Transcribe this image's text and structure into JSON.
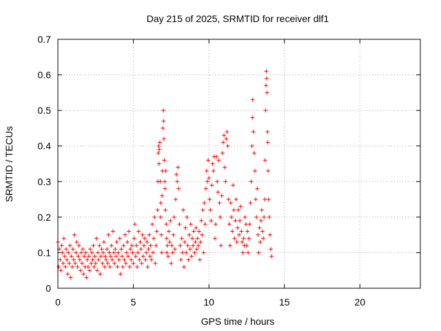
{
  "chart_data": {
    "type": "scatter",
    "title": "Day 215 of 2025, SRMTID for receiver dlf1",
    "xlabel": "GPS time / hours",
    "ylabel": "SRMTID / TECUs",
    "xlim": [
      0,
      24
    ],
    "ylim": [
      0,
      0.7
    ],
    "xticks": [
      0,
      5,
      10,
      15,
      20
    ],
    "yticks": [
      0,
      0.1,
      0.2,
      0.3,
      0.4,
      0.5,
      0.6,
      0.7
    ],
    "grid": true,
    "marker": "plus",
    "color": "#ff0000",
    "series": [
      {
        "name": "SRMTID",
        "points": [
          [
            0.0,
            0.13
          ],
          [
            0.05,
            0.06
          ],
          [
            0.1,
            0.11
          ],
          [
            0.15,
            0.08
          ],
          [
            0.2,
            0.05
          ],
          [
            0.25,
            0.12
          ],
          [
            0.3,
            0.1
          ],
          [
            0.35,
            0.07
          ],
          [
            0.4,
            0.14
          ],
          [
            0.45,
            0.09
          ],
          [
            0.5,
            0.06
          ],
          [
            0.55,
            0.11
          ],
          [
            0.6,
            0.08
          ],
          [
            0.65,
            0.04
          ],
          [
            0.7,
            0.1
          ],
          [
            0.75,
            0.07
          ],
          [
            0.8,
            0.12
          ],
          [
            0.85,
            0.03
          ],
          [
            0.9,
            0.09
          ],
          [
            0.95,
            0.06
          ],
          [
            1.0,
            0.11
          ],
          [
            1.05,
            0.08
          ],
          [
            1.1,
            0.15
          ],
          [
            1.15,
            0.07
          ],
          [
            1.2,
            0.1
          ],
          [
            1.25,
            0.13
          ],
          [
            1.3,
            0.06
          ],
          [
            1.35,
            0.09
          ],
          [
            1.4,
            0.12
          ],
          [
            1.45,
            0.08
          ],
          [
            1.5,
            0.05
          ],
          [
            1.55,
            0.1
          ],
          [
            1.6,
            0.07
          ],
          [
            1.65,
            0.11
          ],
          [
            1.7,
            0.04
          ],
          [
            1.75,
            0.09
          ],
          [
            1.8,
            0.06
          ],
          [
            1.85,
            0.1
          ],
          [
            1.9,
            0.03
          ],
          [
            1.95,
            0.08
          ],
          [
            2.0,
            0.06
          ],
          [
            2.05,
            0.09
          ],
          [
            2.1,
            0.05
          ],
          [
            2.15,
            0.11
          ],
          [
            2.2,
            0.07
          ],
          [
            2.25,
            0.1
          ],
          [
            2.3,
            0.08
          ],
          [
            2.35,
            0.12
          ],
          [
            2.4,
            0.06
          ],
          [
            2.45,
            0.09
          ],
          [
            2.5,
            0.07
          ],
          [
            2.55,
            0.14
          ],
          [
            2.6,
            0.05
          ],
          [
            2.65,
            0.1
          ],
          [
            2.7,
            0.08
          ],
          [
            2.75,
            0.12
          ],
          [
            2.8,
            0.04
          ],
          [
            2.85,
            0.09
          ],
          [
            2.9,
            0.11
          ],
          [
            2.95,
            0.07
          ],
          [
            3.0,
            0.1
          ],
          [
            3.05,
            0.13
          ],
          [
            3.1,
            0.06
          ],
          [
            3.15,
            0.09
          ],
          [
            3.2,
            0.08
          ],
          [
            3.25,
            0.11
          ],
          [
            3.3,
            0.07
          ],
          [
            3.35,
            0.15
          ],
          [
            3.4,
            0.1
          ],
          [
            3.45,
            0.06
          ],
          [
            3.5,
            0.09
          ],
          [
            3.55,
            0.12
          ],
          [
            3.6,
            0.08
          ],
          [
            3.65,
            0.16
          ],
          [
            3.7,
            0.1
          ],
          [
            3.75,
            0.07
          ],
          [
            3.8,
            0.11
          ],
          [
            3.85,
            0.09
          ],
          [
            3.9,
            0.13
          ],
          [
            3.95,
            0.06
          ],
          [
            4.0,
            0.1
          ],
          [
            4.05,
            0.08
          ],
          [
            4.1,
            0.14
          ],
          [
            4.15,
            0.04
          ],
          [
            4.2,
            0.11
          ],
          [
            4.25,
            0.09
          ],
          [
            4.3,
            0.06
          ],
          [
            4.35,
            0.12
          ],
          [
            4.4,
            0.08
          ],
          [
            4.45,
            0.15
          ],
          [
            4.5,
            0.07
          ],
          [
            4.55,
            0.1
          ],
          [
            4.6,
            0.13
          ],
          [
            4.65,
            0.09
          ],
          [
            4.7,
            0.16
          ],
          [
            4.75,
            0.06
          ],
          [
            4.8,
            0.11
          ],
          [
            4.85,
            0.08
          ],
          [
            4.9,
            0.12
          ],
          [
            4.95,
            0.1
          ],
          [
            5.0,
            0.07
          ],
          [
            5.05,
            0.14
          ],
          [
            5.1,
            0.18
          ],
          [
            5.15,
            0.09
          ],
          [
            5.2,
            0.12
          ],
          [
            5.25,
            0.06
          ],
          [
            5.3,
            0.1
          ],
          [
            5.35,
            0.16
          ],
          [
            5.4,
            0.08
          ],
          [
            5.45,
            0.13
          ],
          [
            5.5,
            0.11
          ],
          [
            5.55,
            0.07
          ],
          [
            5.6,
            0.15
          ],
          [
            5.65,
            0.09
          ],
          [
            5.7,
            0.12
          ],
          [
            5.75,
            0.14
          ],
          [
            5.8,
            0.08
          ],
          [
            5.85,
            0.1
          ],
          [
            5.9,
            0.13
          ],
          [
            5.95,
            0.06
          ],
          [
            6.0,
            0.11
          ],
          [
            6.05,
            0.15
          ],
          [
            6.1,
            0.09
          ],
          [
            6.15,
            0.12
          ],
          [
            6.2,
            0.08
          ],
          [
            6.25,
            0.18
          ],
          [
            6.3,
            0.1
          ],
          [
            6.35,
            0.14
          ],
          [
            6.4,
            0.2
          ],
          [
            6.45,
            0.07
          ],
          [
            6.5,
            0.12
          ],
          [
            6.55,
            0.16
          ],
          [
            6.6,
            0.22
          ],
          [
            6.62,
            0.3
          ],
          [
            6.65,
            0.38
          ],
          [
            6.68,
            0.4
          ],
          [
            6.7,
            0.35
          ],
          [
            6.72,
            0.39
          ],
          [
            6.75,
            0.41
          ],
          [
            6.78,
            0.3
          ],
          [
            6.8,
            0.2
          ],
          [
            6.82,
            0.24
          ],
          [
            6.85,
            0.15
          ],
          [
            6.88,
            0.1
          ],
          [
            6.9,
            0.26
          ],
          [
            6.92,
            0.33
          ],
          [
            6.95,
            0.45
          ],
          [
            6.98,
            0.5
          ],
          [
            7.0,
            0.47
          ],
          [
            7.02,
            0.42
          ],
          [
            7.05,
            0.36
          ],
          [
            7.08,
            0.3
          ],
          [
            7.1,
            0.28
          ],
          [
            7.12,
            0.22
          ],
          [
            7.15,
            0.33
          ],
          [
            7.18,
            0.18
          ],
          [
            7.2,
            0.14
          ],
          [
            7.22,
            0.1
          ],
          [
            7.25,
            0.12
          ],
          [
            7.3,
            0.09
          ],
          [
            7.35,
            0.16
          ],
          [
            7.4,
            0.13
          ],
          [
            7.45,
            0.19
          ],
          [
            7.5,
            0.07
          ],
          [
            7.55,
            0.12
          ],
          [
            7.6,
            0.1
          ],
          [
            7.65,
            0.15
          ],
          [
            7.7,
            0.2
          ],
          [
            7.75,
            0.11
          ],
          [
            7.8,
            0.25
          ],
          [
            7.85,
            0.32
          ],
          [
            7.9,
            0.3
          ],
          [
            7.95,
            0.34
          ],
          [
            8.0,
            0.28
          ],
          [
            8.05,
            0.18
          ],
          [
            8.1,
            0.12
          ],
          [
            8.15,
            0.08
          ],
          [
            8.2,
            0.14
          ],
          [
            8.25,
            0.1
          ],
          [
            8.3,
            0.22
          ],
          [
            8.35,
            0.06
          ],
          [
            8.4,
            0.13
          ],
          [
            8.45,
            0.17
          ],
          [
            8.5,
            0.1
          ],
          [
            8.55,
            0.2
          ],
          [
            8.6,
            0.12
          ],
          [
            8.65,
            0.08
          ],
          [
            8.7,
            0.15
          ],
          [
            8.75,
            0.11
          ],
          [
            8.8,
            0.18
          ],
          [
            8.85,
            0.09
          ],
          [
            8.9,
            0.14
          ],
          [
            8.95,
            0.12
          ],
          [
            9.0,
            0.16
          ],
          [
            9.05,
            0.1
          ],
          [
            9.1,
            0.13
          ],
          [
            9.15,
            0.17
          ],
          [
            9.2,
            0.11
          ],
          [
            9.25,
            0.14
          ],
          [
            9.3,
            0.12
          ],
          [
            9.35,
            0.16
          ],
          [
            9.4,
            0.08
          ],
          [
            9.45,
            0.13
          ],
          [
            9.5,
            0.19
          ],
          [
            9.55,
            0.15
          ],
          [
            9.6,
            0.22
          ],
          [
            9.65,
            0.1
          ],
          [
            9.7,
            0.24
          ],
          [
            9.75,
            0.18
          ],
          [
            9.8,
            0.28
          ],
          [
            9.85,
            0.33
          ],
          [
            9.9,
            0.3
          ],
          [
            9.95,
            0.36
          ],
          [
            10.0,
            0.31
          ],
          [
            10.05,
            0.25
          ],
          [
            10.1,
            0.22
          ],
          [
            10.15,
            0.19
          ],
          [
            10.2,
            0.29
          ],
          [
            10.25,
            0.35
          ],
          [
            10.3,
            0.33
          ],
          [
            10.35,
            0.37
          ],
          [
            10.4,
            0.14
          ],
          [
            10.45,
            0.18
          ],
          [
            10.5,
            0.37
          ],
          [
            10.55,
            0.3
          ],
          [
            10.6,
            0.27
          ],
          [
            10.65,
            0.36
          ],
          [
            10.7,
            0.24
          ],
          [
            10.75,
            0.2
          ],
          [
            10.8,
            0.12
          ],
          [
            10.85,
            0.26
          ],
          [
            10.9,
            0.38
          ],
          [
            10.95,
            0.41
          ],
          [
            11.0,
            0.43
          ],
          [
            11.05,
            0.34
          ],
          [
            11.1,
            0.3
          ],
          [
            11.15,
            0.42
          ],
          [
            11.2,
            0.44
          ],
          [
            11.25,
            0.4
          ],
          [
            11.3,
            0.25
          ],
          [
            11.35,
            0.18
          ],
          [
            11.4,
            0.12
          ],
          [
            11.45,
            0.24
          ],
          [
            11.5,
            0.2
          ],
          [
            11.55,
            0.16
          ],
          [
            11.6,
            0.29
          ],
          [
            11.65,
            0.22
          ],
          [
            11.7,
            0.14
          ],
          [
            11.75,
            0.19
          ],
          [
            11.8,
            0.25
          ],
          [
            11.85,
            0.13
          ],
          [
            11.9,
            0.17
          ],
          [
            11.95,
            0.22
          ],
          [
            12.0,
            0.15
          ],
          [
            12.05,
            0.19
          ],
          [
            12.1,
            0.23
          ],
          [
            12.15,
            0.16
          ],
          [
            12.2,
            0.13
          ],
          [
            12.25,
            0.1
          ],
          [
            12.3,
            0.14
          ],
          [
            12.35,
            0.12
          ],
          [
            12.4,
            0.2
          ],
          [
            12.45,
            0.18
          ],
          [
            12.5,
            0.12
          ],
          [
            12.55,
            0.16
          ],
          [
            12.6,
            0.1
          ],
          [
            12.65,
            0.14
          ],
          [
            12.7,
            0.18
          ],
          [
            12.75,
            0.24
          ],
          [
            12.8,
            0.3
          ],
          [
            12.85,
            0.4
          ],
          [
            12.88,
            0.48
          ],
          [
            12.9,
            0.53
          ],
          [
            12.95,
            0.44
          ],
          [
            13.0,
            0.38
          ],
          [
            13.05,
            0.33
          ],
          [
            13.1,
            0.25
          ],
          [
            13.15,
            0.2
          ],
          [
            13.2,
            0.28
          ],
          [
            13.25,
            0.15
          ],
          [
            13.3,
            0.1
          ],
          [
            13.35,
            0.17
          ],
          [
            13.4,
            0.13
          ],
          [
            13.45,
            0.19
          ],
          [
            13.5,
            0.22
          ],
          [
            13.55,
            0.16
          ],
          [
            13.6,
            0.14
          ],
          [
            13.65,
            0.2
          ],
          [
            13.7,
            0.25
          ],
          [
            13.72,
            0.36
          ],
          [
            13.75,
            0.5
          ],
          [
            13.78,
            0.57
          ],
          [
            13.8,
            0.61
          ],
          [
            13.82,
            0.59
          ],
          [
            13.85,
            0.55
          ],
          [
            13.88,
            0.44
          ],
          [
            13.9,
            0.41
          ],
          [
            13.92,
            0.33
          ],
          [
            13.95,
            0.25
          ],
          [
            14.0,
            0.2
          ],
          [
            14.05,
            0.15
          ],
          [
            14.1,
            0.11
          ],
          [
            14.15,
            0.09
          ]
        ]
      }
    ]
  }
}
